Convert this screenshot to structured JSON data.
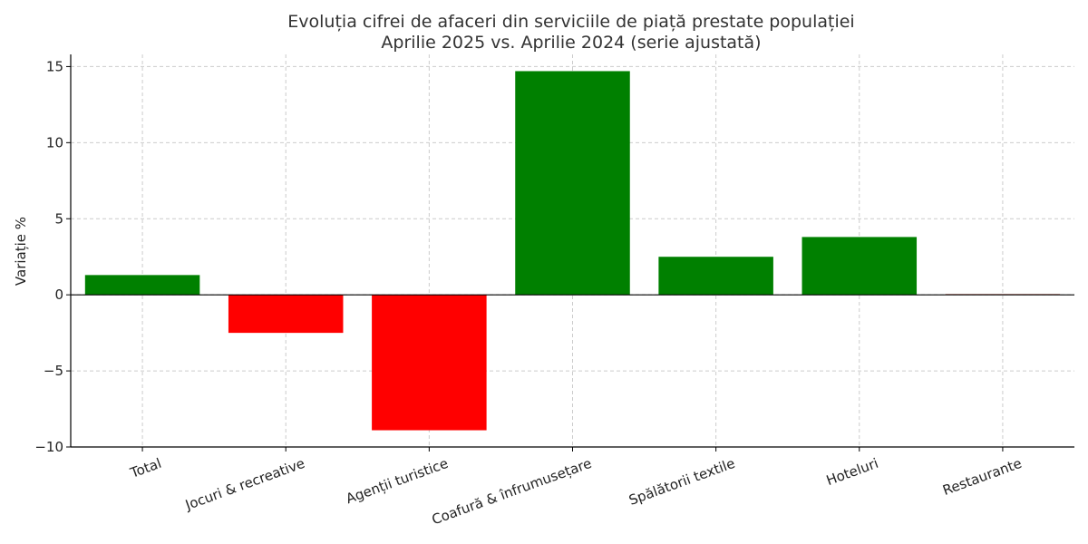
{
  "chart_data": {
    "type": "bar",
    "title": "Evoluția cifrei de afaceri din serviciile de piață prestate populației",
    "subtitle": "Aprilie 2025 vs. Aprilie 2024 (serie ajustată)",
    "xlabel": "",
    "ylabel": "Variație %",
    "categories": [
      "Total",
      "Jocuri & recreative",
      "Agenții turistice",
      "Coafură & înfrumusețare",
      "Spălătorii textile",
      "Hoteluri",
      "Restaurante"
    ],
    "values": [
      1.3,
      -2.5,
      -8.9,
      14.7,
      2.5,
      3.8,
      0.05
    ],
    "ylim": [
      -10,
      15.8
    ],
    "yticks": [
      -10,
      -5,
      0,
      5,
      10,
      15
    ],
    "ytick_labels": [
      "−10",
      "−5",
      "0",
      "5",
      "10",
      "15"
    ],
    "grid": true,
    "colors": {
      "positive": "#008000",
      "negative": "#ff0000",
      "zero_line": "#000000",
      "grid": "#cccccc"
    }
  }
}
